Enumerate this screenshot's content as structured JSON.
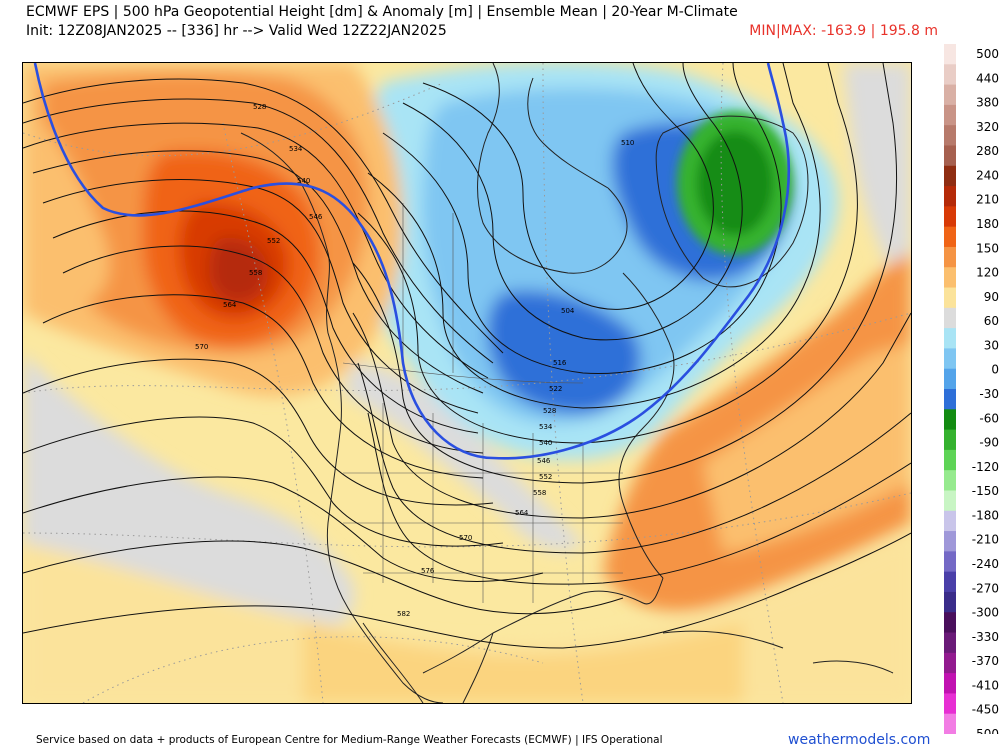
{
  "header": {
    "line1": "ECMWF EPS | 500 hPa Geopotential Height [dm] & Anomaly [m] | Ensemble Mean | 20-Year M-Climate",
    "line2": "Init: 12Z08JAN2025 -- [336] hr --> Valid Wed 12Z22JAN2025",
    "minmax": "MIN|MAX: -163.9 | 195.8 m"
  },
  "footer": {
    "source": "Service based on data + products of European Centre for Medium-Range Weather Forecasts (ECMWF) | IFS Operational",
    "brand": "weathermodels.com"
  },
  "legend": {
    "labels": [
      "500",
      "440",
      "380",
      "320",
      "280",
      "240",
      "210",
      "180",
      "150",
      "120",
      "90",
      "60",
      "30",
      "0",
      "-30",
      "-60",
      "-90",
      "-120",
      "-150",
      "-180",
      "-210",
      "-240",
      "-270",
      "-300",
      "-330",
      "-370",
      "-410",
      "-450",
      "-500"
    ],
    "colors": [
      "#f7e6e2",
      "#e9cdc6",
      "#d9b0a5",
      "#c99487",
      "#b77a6b",
      "#a6604f",
      "#8f2d12",
      "#b52a08",
      "#d83a06",
      "#f06416",
      "#f59444",
      "#fbbf6e",
      "#fbe39b",
      "#dcdcdc",
      "#a9e4f5",
      "#7fc6f2",
      "#54a4ea",
      "#2e6fd8",
      "#138c12",
      "#35b22f",
      "#5ed456",
      "#96ea8e",
      "#c8f5c4",
      "#c9c5ea",
      "#9f98d9",
      "#7469c6",
      "#4a3fa9",
      "#3a2c8a",
      "#4a0f5c",
      "#6a1a78",
      "#921a8f",
      "#c112b1",
      "#e72fd3",
      "#f27de4"
    ]
  },
  "map": {
    "contour_labels": [
      "528",
      "534",
      "540",
      "546",
      "552",
      "558",
      "564",
      "570",
      "510",
      "504",
      "516",
      "522",
      "528",
      "534",
      "540",
      "546",
      "552",
      "558",
      "564",
      "570",
      "576",
      "582"
    ]
  },
  "colors": {
    "title_red": "#e8322a",
    "brand_blue": "#1f4fd1"
  }
}
